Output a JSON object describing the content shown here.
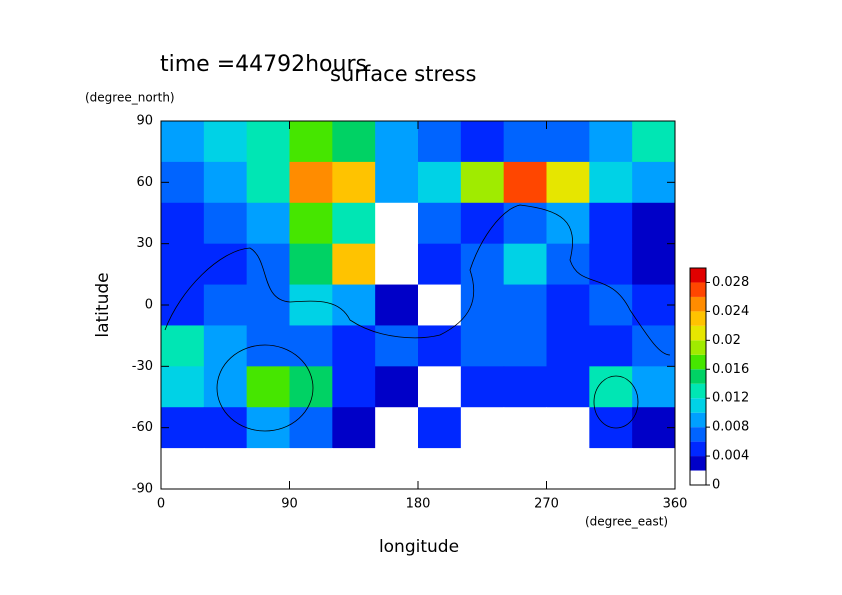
{
  "chart_data": {
    "type": "heatmap",
    "title": "surface stress",
    "subtitle": "time =44792hours",
    "x_label": "longitude",
    "x_unit": "(degree_east)",
    "y_label": "latitude",
    "y_unit": "(degree_north)",
    "x": [
      15,
      45,
      75,
      105,
      135,
      165,
      195,
      225,
      255,
      285,
      315,
      345
    ],
    "y": [
      80,
      60,
      40,
      20,
      0,
      -20,
      -40,
      -60,
      -80
    ],
    "values": [
      [
        0.008,
        0.01,
        0.012,
        0.016,
        0.014,
        0.008,
        0.006,
        0.004,
        0.006,
        0.006,
        0.008,
        0.012
      ],
      [
        0.006,
        0.008,
        0.012,
        0.024,
        0.022,
        0.008,
        0.01,
        0.018,
        0.026,
        0.02,
        0.01,
        0.008
      ],
      [
        0.004,
        0.006,
        0.008,
        0.016,
        0.012,
        0.001,
        0.006,
        0.004,
        0.006,
        0.008,
        0.004,
        0.002
      ],
      [
        0.004,
        0.004,
        0.006,
        0.014,
        0.022,
        0.001,
        0.004,
        0.006,
        0.01,
        0.006,
        0.004,
        0.002
      ],
      [
        0.004,
        0.006,
        0.006,
        0.01,
        0.008,
        0.002,
        0.001,
        0.006,
        0.006,
        0.004,
        0.006,
        0.004
      ],
      [
        0.012,
        0.008,
        0.006,
        0.006,
        0.004,
        0.006,
        0.004,
        0.006,
        0.006,
        0.004,
        0.004,
        0.006
      ],
      [
        0.01,
        0.008,
        0.016,
        0.014,
        0.004,
        0.002,
        0.001,
        0.004,
        0.004,
        0.004,
        0.012,
        0.008
      ],
      [
        0.004,
        0.004,
        0.008,
        0.006,
        0.002,
        0.001,
        0.004,
        0.001,
        0.001,
        0.001,
        0.004,
        0.002
      ],
      [
        0.001,
        0.001,
        0.001,
        0.001,
        0.001,
        0.001,
        0.001,
        0.001,
        0.001,
        0.001,
        0.001,
        0.001
      ]
    ],
    "xlim": [
      0,
      360
    ],
    "xticks": [
      0,
      90,
      180,
      270,
      360
    ],
    "ylim": [
      -90,
      90
    ],
    "yticks": [
      -90,
      -60,
      -30,
      0,
      30,
      60,
      90
    ],
    "clim": [
      0,
      0.03
    ],
    "cticks": [
      0,
      0.004,
      0.008,
      0.012,
      0.016,
      0.02,
      0.024,
      0.028
    ],
    "colors": [
      "#ffffff",
      "#0000c8",
      "#0028ff",
      "#0064ff",
      "#00a0ff",
      "#00d2e6",
      "#00e6b4",
      "#00d264",
      "#46e600",
      "#a0eb00",
      "#e6e600",
      "#ffc300",
      "#ff8c00",
      "#ff4600",
      "#e10000"
    ]
  }
}
